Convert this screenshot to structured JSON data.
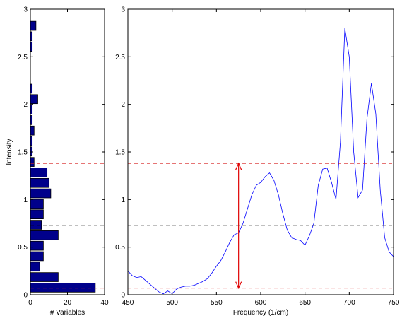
{
  "chart_data": [
    {
      "type": "histogram",
      "orientation": "horizontal",
      "xlabel": "# Variables",
      "ylabel": "Intensity",
      "bins": [
        0.02,
        0.13,
        0.24,
        0.35,
        0.46,
        0.57,
        0.68,
        0.79,
        0.9,
        1.01,
        1.12,
        1.23,
        1.34,
        1.45,
        1.56,
        1.67,
        1.78,
        1.89,
        2.0,
        2.11,
        2.22,
        2.33,
        2.44,
        2.55,
        2.66,
        2.77,
        2.88
      ],
      "counts": [
        35,
        15,
        5,
        7,
        7,
        15,
        6,
        7,
        7,
        11,
        10,
        9,
        2,
        1,
        1,
        2,
        1,
        1,
        4,
        1,
        0,
        0,
        0,
        1,
        1,
        3
      ],
      "color": "#00008b",
      "xlim": [
        0,
        40
      ],
      "xticks": [
        0,
        20,
        40
      ],
      "ylim": [
        0,
        3
      ],
      "yticks": [
        0,
        0.5,
        1,
        1.5,
        2,
        2.5,
        3
      ],
      "reference_lines": [
        {
          "value": 1.38,
          "color": "#d62020"
        },
        {
          "value": 0.73,
          "color": "#000000"
        },
        {
          "value": 0.07,
          "color": "#d62020"
        }
      ]
    },
    {
      "type": "line",
      "xlabel": "Frequency (1/cm)",
      "x": [
        450,
        455,
        460,
        465,
        470,
        475,
        480,
        485,
        490,
        495,
        500,
        505,
        510,
        515,
        520,
        525,
        530,
        535,
        540,
        545,
        550,
        555,
        560,
        565,
        570,
        575,
        580,
        585,
        590,
        595,
        600,
        605,
        610,
        615,
        620,
        625,
        630,
        635,
        640,
        645,
        650,
        655,
        660,
        665,
        670,
        675,
        680,
        685,
        690,
        695,
        700,
        705,
        710,
        715,
        720,
        725,
        730,
        735,
        740,
        745,
        750
      ],
      "values": [
        0.25,
        0.2,
        0.18,
        0.19,
        0.15,
        0.11,
        0.07,
        0.03,
        0.01,
        0.04,
        0.01,
        0.06,
        0.08,
        0.09,
        0.09,
        0.1,
        0.12,
        0.14,
        0.17,
        0.23,
        0.3,
        0.36,
        0.45,
        0.55,
        0.63,
        0.65,
        0.75,
        0.9,
        1.05,
        1.15,
        1.18,
        1.24,
        1.28,
        1.2,
        1.05,
        0.85,
        0.68,
        0.6,
        0.58,
        0.57,
        0.52,
        0.62,
        0.75,
        1.15,
        1.32,
        1.33,
        1.18,
        1.0,
        1.6,
        2.8,
        2.5,
        1.5,
        1.02,
        1.1,
        1.85,
        2.22,
        1.9,
        1.1,
        0.6,
        0.45,
        0.4
      ],
      "color": "#0000ff",
      "xlim": [
        450,
        750
      ],
      "xticks": [
        450,
        500,
        550,
        600,
        650,
        700,
        750
      ],
      "ylim": [
        0,
        3
      ],
      "yticks": [
        0,
        0.5,
        1,
        1.5,
        2,
        2.5,
        3
      ],
      "reference_lines": [
        {
          "value": 1.38,
          "color": "#d62020"
        },
        {
          "value": 0.73,
          "color": "#000000"
        },
        {
          "value": 0.07,
          "color": "#d62020"
        }
      ],
      "arrow": {
        "x": 575,
        "y": [
          0.07,
          1.38
        ],
        "color": "#e00000"
      }
    }
  ]
}
